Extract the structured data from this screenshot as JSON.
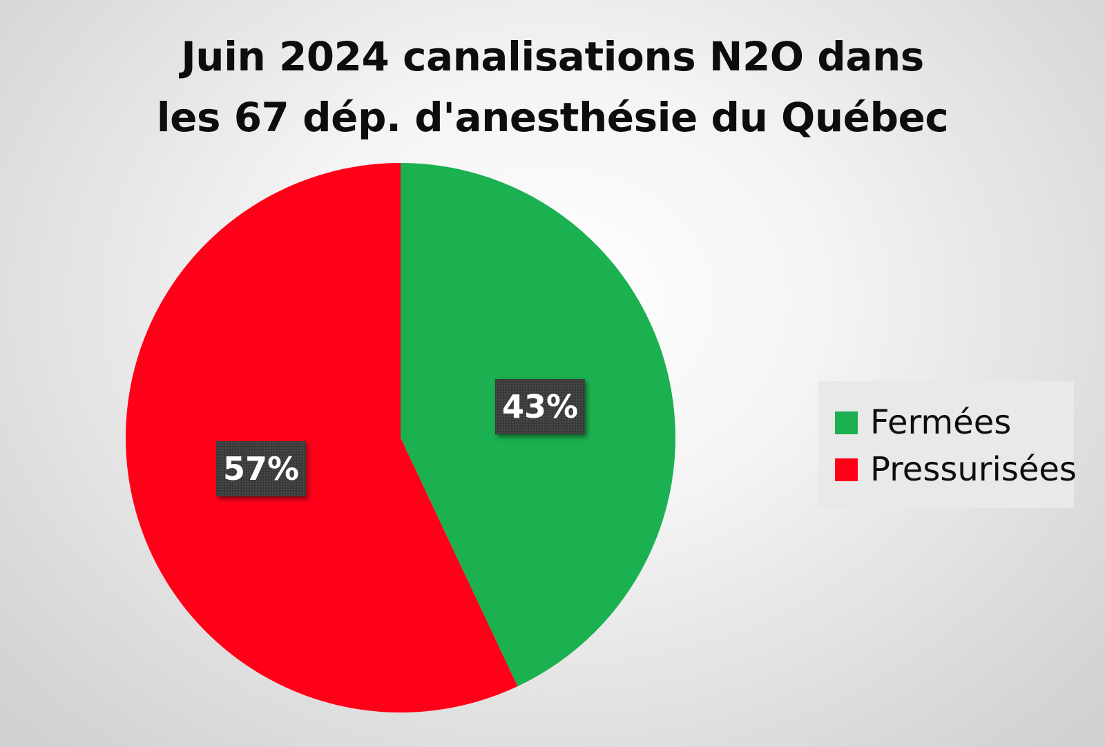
{
  "chart_data": {
    "type": "pie",
    "title_lines": [
      "Juin 2024 canalisations N2O dans",
      "les 67 dép. d'anesthésie du Québec"
    ],
    "categories": [
      "Fermées",
      "Pressurisées"
    ],
    "values": [
      43,
      57
    ],
    "value_labels": [
      "43%",
      "57%"
    ],
    "colors": [
      "#1bb050",
      "#ff0019"
    ],
    "start_angle_deg": 0,
    "direction": "clockwise",
    "legend_position": "right"
  }
}
